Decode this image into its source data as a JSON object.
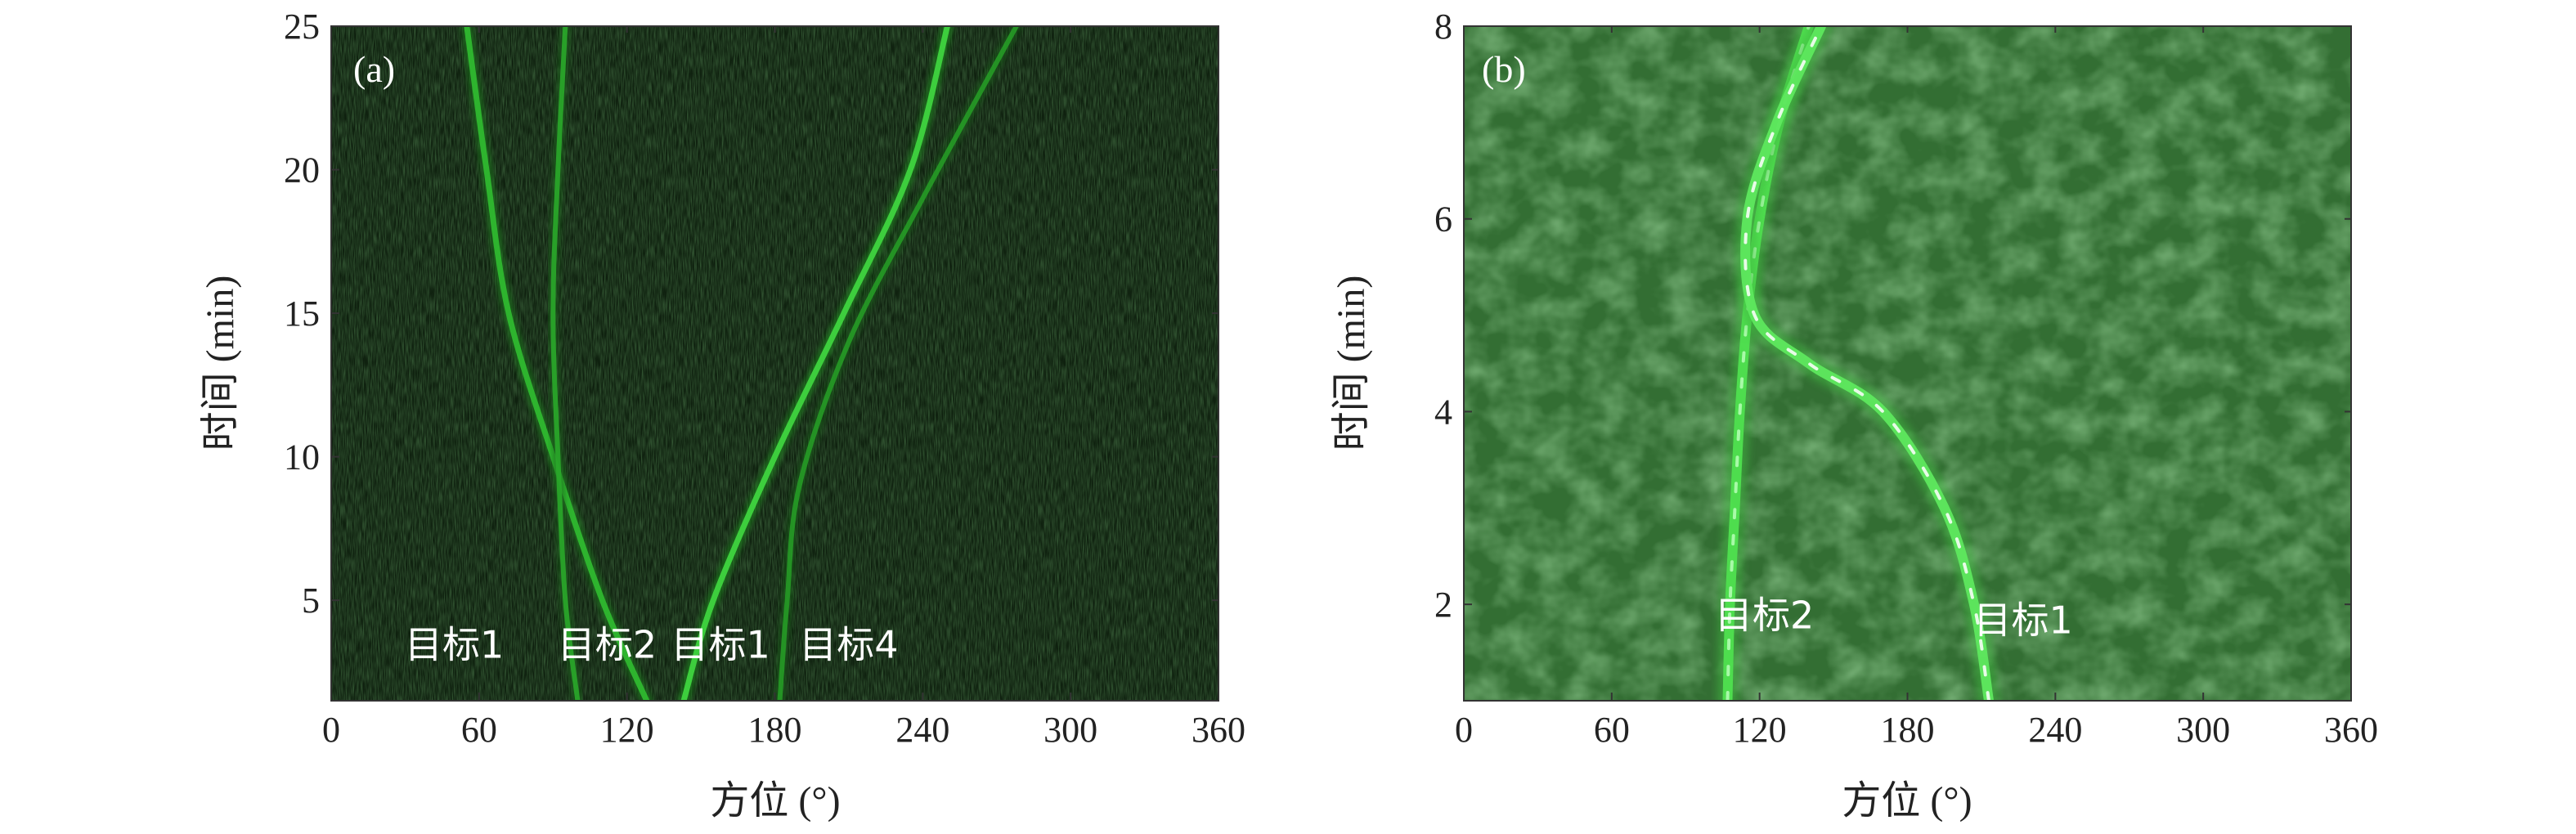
{
  "chart_data": [
    {
      "type": "heatmap",
      "panel_label": "(a)",
      "xlabel": "方位 (°)",
      "ylabel": "时间 (min)",
      "xlim": [
        0,
        360
      ],
      "ylim": [
        1.5,
        25
      ],
      "xticks": [
        0,
        60,
        120,
        180,
        240,
        300,
        360
      ],
      "yticks": [
        5,
        10,
        15,
        20,
        25
      ],
      "colormap": [
        "#0c1a0c",
        "#2f9a2f",
        "#7dff7d"
      ],
      "tracks": [
        {
          "name": "目标1",
          "points": [
            [
              128,
              1.5
            ],
            [
              110,
              5
            ],
            [
              90,
              10
            ],
            [
              72,
              15
            ],
            [
              63,
              20
            ],
            [
              55,
              25
            ]
          ]
        },
        {
          "name": "目标2",
          "points": [
            [
              100,
              1.5
            ],
            [
              95,
              5
            ],
            [
              92,
              10
            ],
            [
              90,
              15
            ],
            [
              92,
              20
            ],
            [
              95,
              25
            ]
          ]
        },
        {
          "name": "目标1",
          "points": [
            [
              143,
              1.5
            ],
            [
              155,
              5
            ],
            [
              180,
              10
            ],
            [
              208,
              15
            ],
            [
              235,
              20
            ],
            [
              250,
              25
            ]
          ]
        },
        {
          "name": "目标4",
          "points": [
            [
              182,
              1.5
            ],
            [
              185,
              5
            ],
            [
              190,
              9
            ],
            [
              210,
              14
            ],
            [
              240,
              19
            ],
            [
              278,
              25
            ]
          ]
        }
      ],
      "annotations": [
        {
          "text": "目标1",
          "x": 50,
          "y": 3.0
        },
        {
          "text": "目标2",
          "x": 112,
          "y": 3.0
        },
        {
          "text": "目标1",
          "x": 158,
          "y": 3.0
        },
        {
          "text": "目标4",
          "x": 210,
          "y": 3.0
        }
      ]
    },
    {
      "type": "heatmap",
      "panel_label": "(b)",
      "xlabel": "方位 (°)",
      "ylabel": "时间 (min)",
      "xlim": [
        0,
        360
      ],
      "ylim": [
        1,
        8
      ],
      "xticks": [
        0,
        60,
        120,
        180,
        240,
        300,
        360
      ],
      "yticks": [
        2,
        4,
        6,
        8
      ],
      "colormap": [
        "#2e6a2e",
        "#3f8f3f",
        "#9cff9c"
      ],
      "tracks": [
        {
          "name": "目标2",
          "points": [
            [
              107,
              1
            ],
            [
              108,
              2
            ],
            [
              110,
              3
            ],
            [
              112,
              4
            ],
            [
              115,
              5
            ],
            [
              120,
              6
            ],
            [
              128,
              7
            ],
            [
              140,
              8
            ]
          ]
        },
        {
          "name": "目标1",
          "points": [
            [
              213,
              1
            ],
            [
              207,
              2
            ],
            [
              195,
              3
            ],
            [
              170,
              4
            ],
            [
              140,
              4.5
            ],
            [
              118,
              5
            ],
            [
              115,
              6
            ],
            [
              127,
              7
            ],
            [
              145,
              8
            ]
          ]
        }
      ],
      "annotations": [
        {
          "text": "目标2",
          "x": 122,
          "y": 1.75
        },
        {
          "text": "目标1",
          "x": 227,
          "y": 1.7
        }
      ]
    }
  ]
}
